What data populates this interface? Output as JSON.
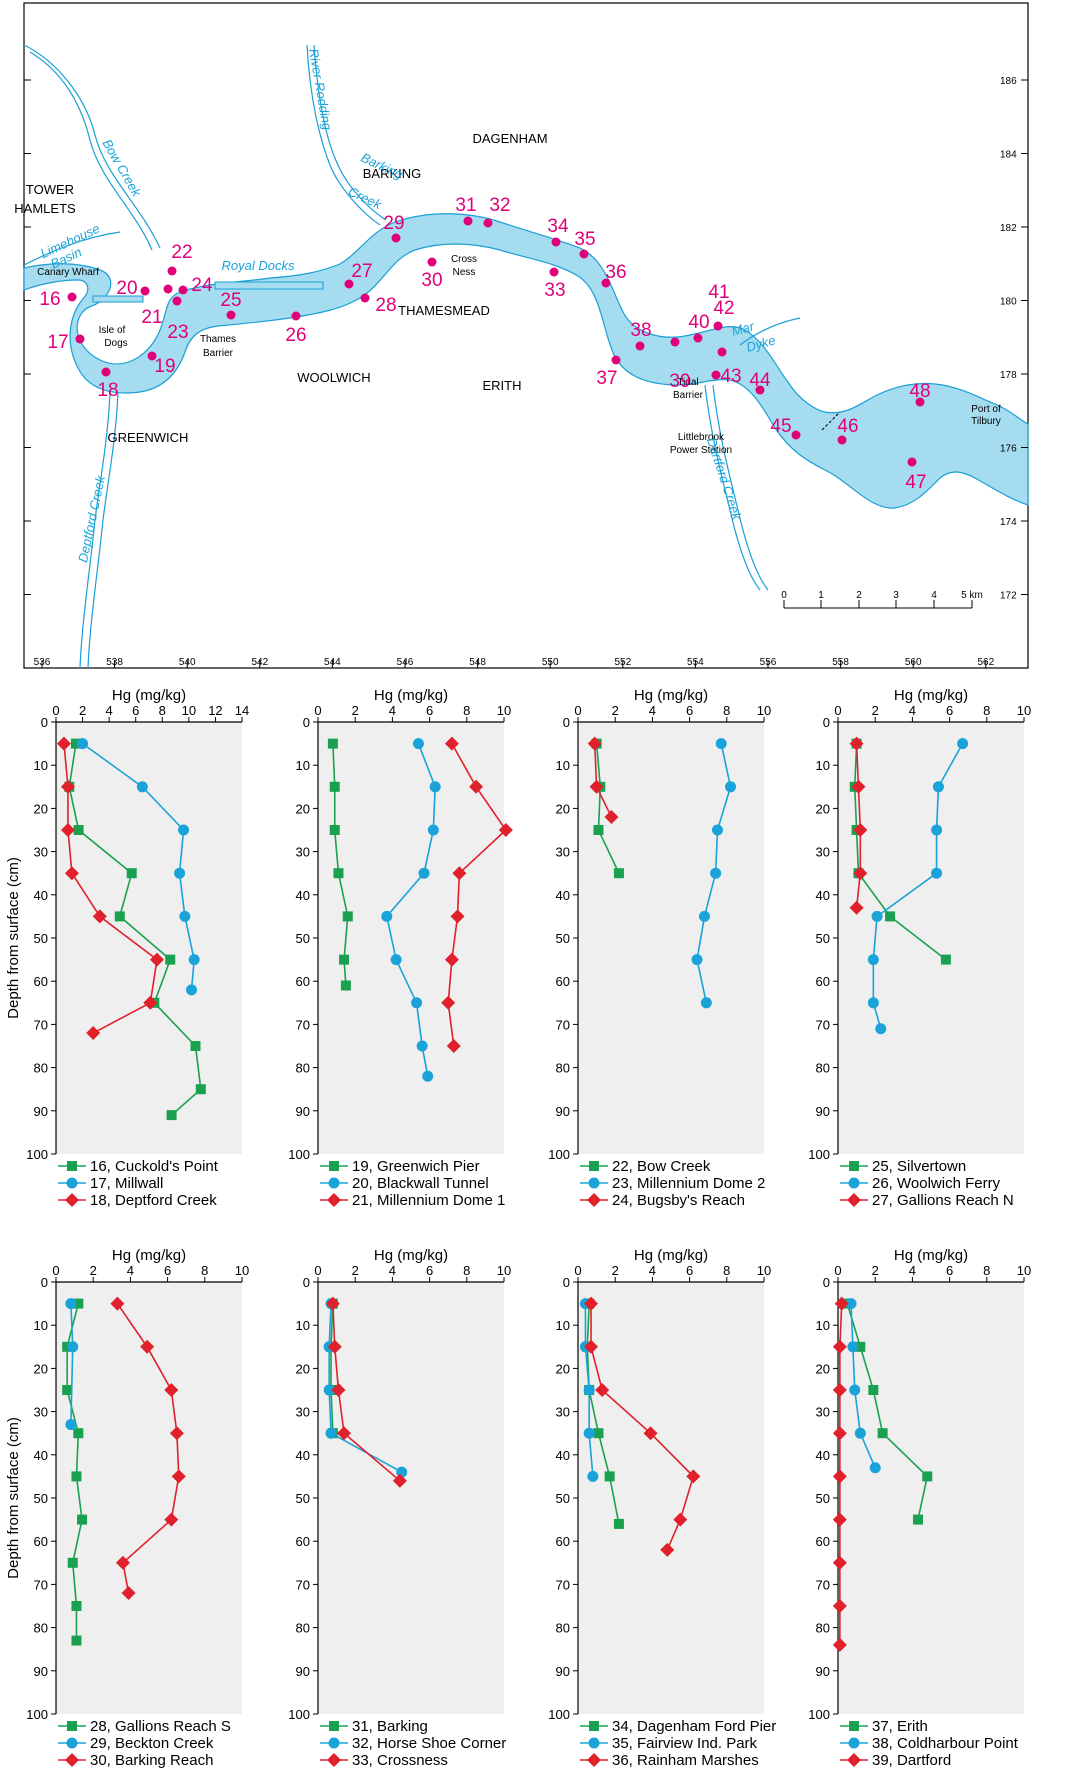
{
  "colors": {
    "river": "#a6dcef",
    "river_edge": "#1a9fd6",
    "site": "#e0007a",
    "panel_bg": "#efefef",
    "series": [
      "#1aa150",
      "#1aa3d9",
      "#e0202a"
    ]
  },
  "map": {
    "place_labels": [
      "TOWER",
      "HAMLETS",
      "Canary Wharf",
      "Isle of",
      "Dogs",
      "GREENWICH",
      "Thames",
      "Barrier",
      "WOOLWICH",
      "BARKING",
      "DAGENHAM",
      "Cross",
      "Ness",
      "THAMESMEAD",
      "ERITH",
      "Tidal",
      "Barrier",
      "Littlebrook",
      "Power Station",
      "Port of",
      "Tilbury"
    ],
    "water_labels": [
      "Bow Creek",
      "Limehouse",
      "Basin",
      "Royal Docks",
      "River Rodding",
      "Barking",
      "Creek",
      "Deptford Creek",
      "Dartford Creek",
      "Mar",
      "Dyke"
    ],
    "site_labels": [
      "16",
      "17",
      "18",
      "19",
      "20",
      "21",
      "22",
      "23",
      "24",
      "25",
      "26",
      "27",
      "28",
      "29",
      "30",
      "31",
      "32",
      "33",
      "34",
      "35",
      "36",
      "37",
      "38",
      "39",
      "40",
      "41",
      "42",
      "43",
      "44",
      "45",
      "46",
      "47",
      "48"
    ],
    "easting_labels": [
      "536",
      "538",
      "540",
      "542",
      "544",
      "546",
      "548",
      "550",
      "552",
      "554",
      "556",
      "558",
      "560",
      "562"
    ],
    "northing_labels": [
      "186",
      "184",
      "182",
      "180",
      "178",
      "176",
      "174",
      "172"
    ],
    "scale_labels": [
      "0",
      "1",
      "2",
      "3",
      "4",
      "5 km"
    ]
  },
  "chart_data": [
    {
      "type": "line",
      "xlabel": "Hg (mg/kg)",
      "ylabel": "Depth from surface (cm)",
      "xlim": [
        0,
        14
      ],
      "ylim": [
        0,
        100
      ],
      "xticks": [
        0,
        2,
        4,
        6,
        8,
        10,
        12,
        14
      ],
      "yticks": [
        0,
        10,
        20,
        30,
        40,
        50,
        60,
        70,
        80,
        90,
        100
      ],
      "grid": false,
      "series": [
        {
          "name": "16, Cuckold's Point",
          "x": [
            1.5,
            1.0,
            1.7,
            5.7,
            4.8,
            8.6,
            7.4,
            10.5,
            10.9,
            8.7
          ],
          "y": [
            5,
            15,
            25,
            35,
            45,
            55,
            65,
            75,
            85,
            91
          ]
        },
        {
          "name": "17, Millwall",
          "x": [
            2.0,
            6.5,
            9.6,
            9.3,
            9.7,
            10.4,
            10.2
          ],
          "y": [
            5,
            15,
            25,
            35,
            45,
            55,
            62
          ]
        },
        {
          "name": "18, Deptford Creek",
          "x": [
            0.6,
            0.9,
            0.9,
            1.2,
            3.3,
            7.6,
            7.1,
            2.8
          ],
          "y": [
            5,
            15,
            25,
            35,
            45,
            55,
            65,
            72
          ]
        }
      ]
    },
    {
      "type": "line",
      "xlabel": "Hg (mg/kg)",
      "ylabel": "",
      "xlim": [
        0,
        10
      ],
      "ylim": [
        0,
        100
      ],
      "xticks": [
        0,
        2,
        4,
        6,
        8,
        10
      ],
      "yticks": [
        0,
        10,
        20,
        30,
        40,
        50,
        60,
        70,
        80,
        90,
        100
      ],
      "grid": false,
      "series": [
        {
          "name": "19, Greenwich Pier",
          "x": [
            0.8,
            0.9,
            0.9,
            1.1,
            1.6,
            1.4,
            1.5
          ],
          "y": [
            5,
            15,
            25,
            35,
            45,
            55,
            61
          ]
        },
        {
          "name": "20, Blackwall Tunnel",
          "x": [
            5.4,
            6.3,
            6.2,
            5.7,
            3.7,
            4.2,
            5.3,
            5.6,
            5.9
          ],
          "y": [
            5,
            15,
            25,
            35,
            45,
            55,
            65,
            75,
            82
          ]
        },
        {
          "name": "21, Millennium Dome 1",
          "x": [
            7.2,
            8.5,
            10.1,
            7.6,
            7.5,
            7.2,
            7.0,
            7.3
          ],
          "y": [
            5,
            15,
            25,
            35,
            45,
            55,
            65,
            75
          ]
        }
      ]
    },
    {
      "type": "line",
      "xlabel": "Hg (mg/kg)",
      "ylabel": "",
      "xlim": [
        0,
        10
      ],
      "ylim": [
        0,
        100
      ],
      "xticks": [
        0,
        2,
        4,
        6,
        8,
        10
      ],
      "yticks": [
        0,
        10,
        20,
        30,
        40,
        50,
        60,
        70,
        80,
        90,
        100
      ],
      "grid": false,
      "series": [
        {
          "name": "22, Bow Creek",
          "x": [
            1.0,
            1.2,
            1.1,
            2.2
          ],
          "y": [
            5,
            15,
            25,
            35
          ]
        },
        {
          "name": "23, Millennium Dome 2",
          "x": [
            7.7,
            8.2,
            7.5,
            7.4,
            6.8,
            6.4,
            6.9
          ],
          "y": [
            5,
            15,
            25,
            35,
            45,
            55,
            65
          ]
        },
        {
          "name": "24, Bugsby's Reach",
          "x": [
            0.9,
            1.0,
            1.8
          ],
          "y": [
            5,
            15,
            22
          ]
        }
      ]
    },
    {
      "type": "line",
      "xlabel": "Hg (mg/kg)",
      "ylabel": "",
      "xlim": [
        0,
        10
      ],
      "ylim": [
        0,
        100
      ],
      "xticks": [
        0,
        2,
        4,
        6,
        8,
        10
      ],
      "yticks": [
        0,
        10,
        20,
        30,
        40,
        50,
        60,
        70,
        80,
        90,
        100
      ],
      "grid": false,
      "series": [
        {
          "name": "25, Silvertown",
          "x": [
            1.0,
            0.9,
            1.0,
            1.1,
            2.8,
            5.8
          ],
          "y": [
            5,
            15,
            25,
            35,
            45,
            55
          ]
        },
        {
          "name": "26, Woolwich Ferry",
          "x": [
            6.7,
            5.4,
            5.3,
            5.3,
            2.1,
            1.9,
            1.9,
            2.3
          ],
          "y": [
            5,
            15,
            25,
            35,
            45,
            55,
            65,
            71
          ]
        },
        {
          "name": "27, Gallions Reach N",
          "x": [
            1.0,
            1.1,
            1.2,
            1.2,
            1.0
          ],
          "y": [
            5,
            15,
            25,
            35,
            43
          ]
        }
      ]
    },
    {
      "type": "line",
      "xlabel": "Hg (mg/kg)",
      "ylabel": "Depth from surface (cm)",
      "xlim": [
        0,
        10
      ],
      "ylim": [
        0,
        100
      ],
      "xticks": [
        0,
        2,
        4,
        6,
        8,
        10
      ],
      "yticks": [
        0,
        10,
        20,
        30,
        40,
        50,
        60,
        70,
        80,
        90,
        100
      ],
      "grid": false,
      "series": [
        {
          "name": "28, Gallions Reach S",
          "x": [
            1.2,
            0.6,
            0.6,
            1.2,
            1.1,
            1.4,
            0.9,
            1.1,
            1.1
          ],
          "y": [
            5,
            15,
            25,
            35,
            45,
            55,
            65,
            75,
            83
          ]
        },
        {
          "name": "29, Beckton Creek",
          "x": [
            0.8,
            0.9,
            0.8
          ],
          "y": [
            5,
            15,
            33
          ]
        },
        {
          "name": "30, Barking Reach",
          "x": [
            3.3,
            4.9,
            6.2,
            6.5,
            6.6,
            6.2,
            3.6,
            3.9
          ],
          "y": [
            5,
            15,
            25,
            35,
            45,
            55,
            65,
            72
          ]
        }
      ]
    },
    {
      "type": "line",
      "xlabel": "Hg (mg/kg)",
      "ylabel": "",
      "xlim": [
        0,
        10
      ],
      "ylim": [
        0,
        100
      ],
      "xticks": [
        0,
        2,
        4,
        6,
        8,
        10
      ],
      "yticks": [
        0,
        10,
        20,
        30,
        40,
        50,
        60,
        70,
        80,
        90,
        100
      ],
      "grid": false,
      "series": [
        {
          "name": "31, Barking",
          "x": [
            0.8,
            0.7,
            0.7,
            0.8
          ],
          "y": [
            5,
            15,
            25,
            35
          ]
        },
        {
          "name": "32, Horse Shoe Corner",
          "x": [
            0.7,
            0.6,
            0.6,
            0.7,
            4.5
          ],
          "y": [
            5,
            15,
            25,
            35,
            44
          ]
        },
        {
          "name": "33, Crossness",
          "x": [
            0.8,
            0.9,
            1.1,
            1.4,
            4.4
          ],
          "y": [
            5,
            15,
            25,
            35,
            46
          ]
        }
      ]
    },
    {
      "type": "line",
      "xlabel": "Hg (mg/kg)",
      "ylabel": "",
      "xlim": [
        0,
        10
      ],
      "ylim": [
        0,
        100
      ],
      "xticks": [
        0,
        2,
        4,
        6,
        8,
        10
      ],
      "yticks": [
        0,
        10,
        20,
        30,
        40,
        50,
        60,
        70,
        80,
        90,
        100
      ],
      "grid": false,
      "series": [
        {
          "name": "34, Dagenham Ford Pier",
          "x": [
            0.6,
            0.5,
            0.6,
            1.1,
            1.7,
            2.2
          ],
          "y": [
            5,
            15,
            25,
            35,
            45,
            56
          ]
        },
        {
          "name": "35, Fairview Ind. Park",
          "x": [
            0.4,
            0.4,
            0.6,
            0.6,
            0.8
          ],
          "y": [
            5,
            15,
            25,
            35,
            45
          ]
        },
        {
          "name": "36, Rainham Marshes",
          "x": [
            0.7,
            0.7,
            1.3,
            3.9,
            6.2,
            5.5,
            4.8
          ],
          "y": [
            5,
            15,
            25,
            35,
            45,
            55,
            62
          ]
        }
      ]
    },
    {
      "type": "line",
      "xlabel": "Hg (mg/kg)",
      "ylabel": "",
      "xlim": [
        0,
        10
      ],
      "ylim": [
        0,
        100
      ],
      "xticks": [
        0,
        2,
        4,
        6,
        8,
        10
      ],
      "yticks": [
        0,
        10,
        20,
        30,
        40,
        50,
        60,
        70,
        80,
        90,
        100
      ],
      "grid": false,
      "series": [
        {
          "name": "37, Erith",
          "x": [
            0.5,
            1.2,
            1.9,
            2.4,
            4.8,
            4.3
          ],
          "y": [
            5,
            15,
            25,
            35,
            45,
            55
          ]
        },
        {
          "name": "38, Coldharbour Point",
          "x": [
            0.7,
            0.8,
            0.9,
            1.2,
            2.0
          ],
          "y": [
            5,
            15,
            25,
            35,
            43
          ]
        },
        {
          "name": "39, Dartford",
          "x": [
            0.2,
            0.1,
            0.1,
            0.1,
            0.1,
            0.1,
            0.1,
            0.1,
            0.1
          ],
          "y": [
            5,
            15,
            25,
            35,
            45,
            55,
            65,
            75,
            84
          ]
        }
      ]
    }
  ]
}
